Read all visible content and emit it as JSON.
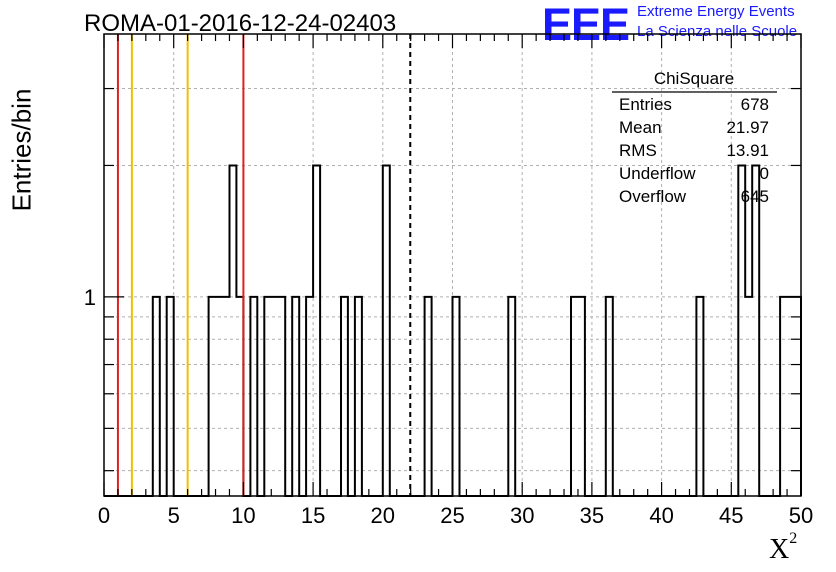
{
  "title": "ROMA-01-2016-12-24-02403",
  "logo": {
    "text": "EEE",
    "line1": "Extreme Energy Events",
    "line2": "La Scienza nelle Scuole"
  },
  "colors": {
    "red_line": "#e02020",
    "yellow_line": "#f0c000",
    "logo_blue": "#1a1aff",
    "grid": "#b0b0b0"
  },
  "chart_data": {
    "type": "histogram",
    "title": "ROMA-01-2016-12-24-02403",
    "xlabel": "X",
    "xlabel_superscript": "2",
    "ylabel": "Entries/bin",
    "xlim": [
      0,
      50
    ],
    "ylog": true,
    "ylim": [
      0.35,
      4
    ],
    "bin_width": 0.5,
    "x_ticks": [
      0,
      5,
      10,
      15,
      20,
      25,
      30,
      35,
      40,
      45,
      50
    ],
    "y_tick_labels": [
      {
        "value": 1,
        "label": "1"
      }
    ],
    "grid": true,
    "bins": [
      {
        "x": 3.5,
        "count": 1
      },
      {
        "x": 4.5,
        "count": 1
      },
      {
        "x": 7.5,
        "count": 1
      },
      {
        "x": 8.0,
        "count": 1
      },
      {
        "x": 8.5,
        "count": 1
      },
      {
        "x": 9.0,
        "count": 2
      },
      {
        "x": 9.5,
        "count": 1
      },
      {
        "x": 10.5,
        "count": 1
      },
      {
        "x": 11.5,
        "count": 1
      },
      {
        "x": 12.0,
        "count": 1
      },
      {
        "x": 12.5,
        "count": 1
      },
      {
        "x": 13.5,
        "count": 1
      },
      {
        "x": 14.5,
        "count": 1
      },
      {
        "x": 15.0,
        "count": 2
      },
      {
        "x": 17.0,
        "count": 1
      },
      {
        "x": 18.0,
        "count": 1
      },
      {
        "x": 20.0,
        "count": 2
      },
      {
        "x": 23.0,
        "count": 1
      },
      {
        "x": 25.0,
        "count": 1
      },
      {
        "x": 29.0,
        "count": 1
      },
      {
        "x": 33.5,
        "count": 1
      },
      {
        "x": 34.0,
        "count": 1
      },
      {
        "x": 36.0,
        "count": 1
      },
      {
        "x": 42.5,
        "count": 1
      },
      {
        "x": 45.5,
        "count": 2
      },
      {
        "x": 46.0,
        "count": 1
      },
      {
        "x": 46.5,
        "count": 2
      },
      {
        "x": 48.5,
        "count": 1
      },
      {
        "x": 49.0,
        "count": 1
      },
      {
        "x": 49.5,
        "count": 1
      }
    ],
    "vertical_lines": [
      {
        "x": 1.0,
        "color": "red",
        "style": "solid"
      },
      {
        "x": 2.0,
        "color": "yellow",
        "style": "solid"
      },
      {
        "x": 6.0,
        "color": "yellow",
        "style": "solid"
      },
      {
        "x": 10.0,
        "color": "red",
        "style": "solid"
      },
      {
        "x": 21.97,
        "color": "black",
        "style": "dashed"
      }
    ],
    "stats_box": {
      "title": "ChiSquare",
      "rows": [
        {
          "label": "Entries",
          "value": "678"
        },
        {
          "label": "Mean",
          "value": "21.97"
        },
        {
          "label": "RMS",
          "value": "13.91"
        },
        {
          "label": "Underflow",
          "value": "0"
        },
        {
          "label": "Overflow",
          "value": "645"
        }
      ]
    }
  }
}
